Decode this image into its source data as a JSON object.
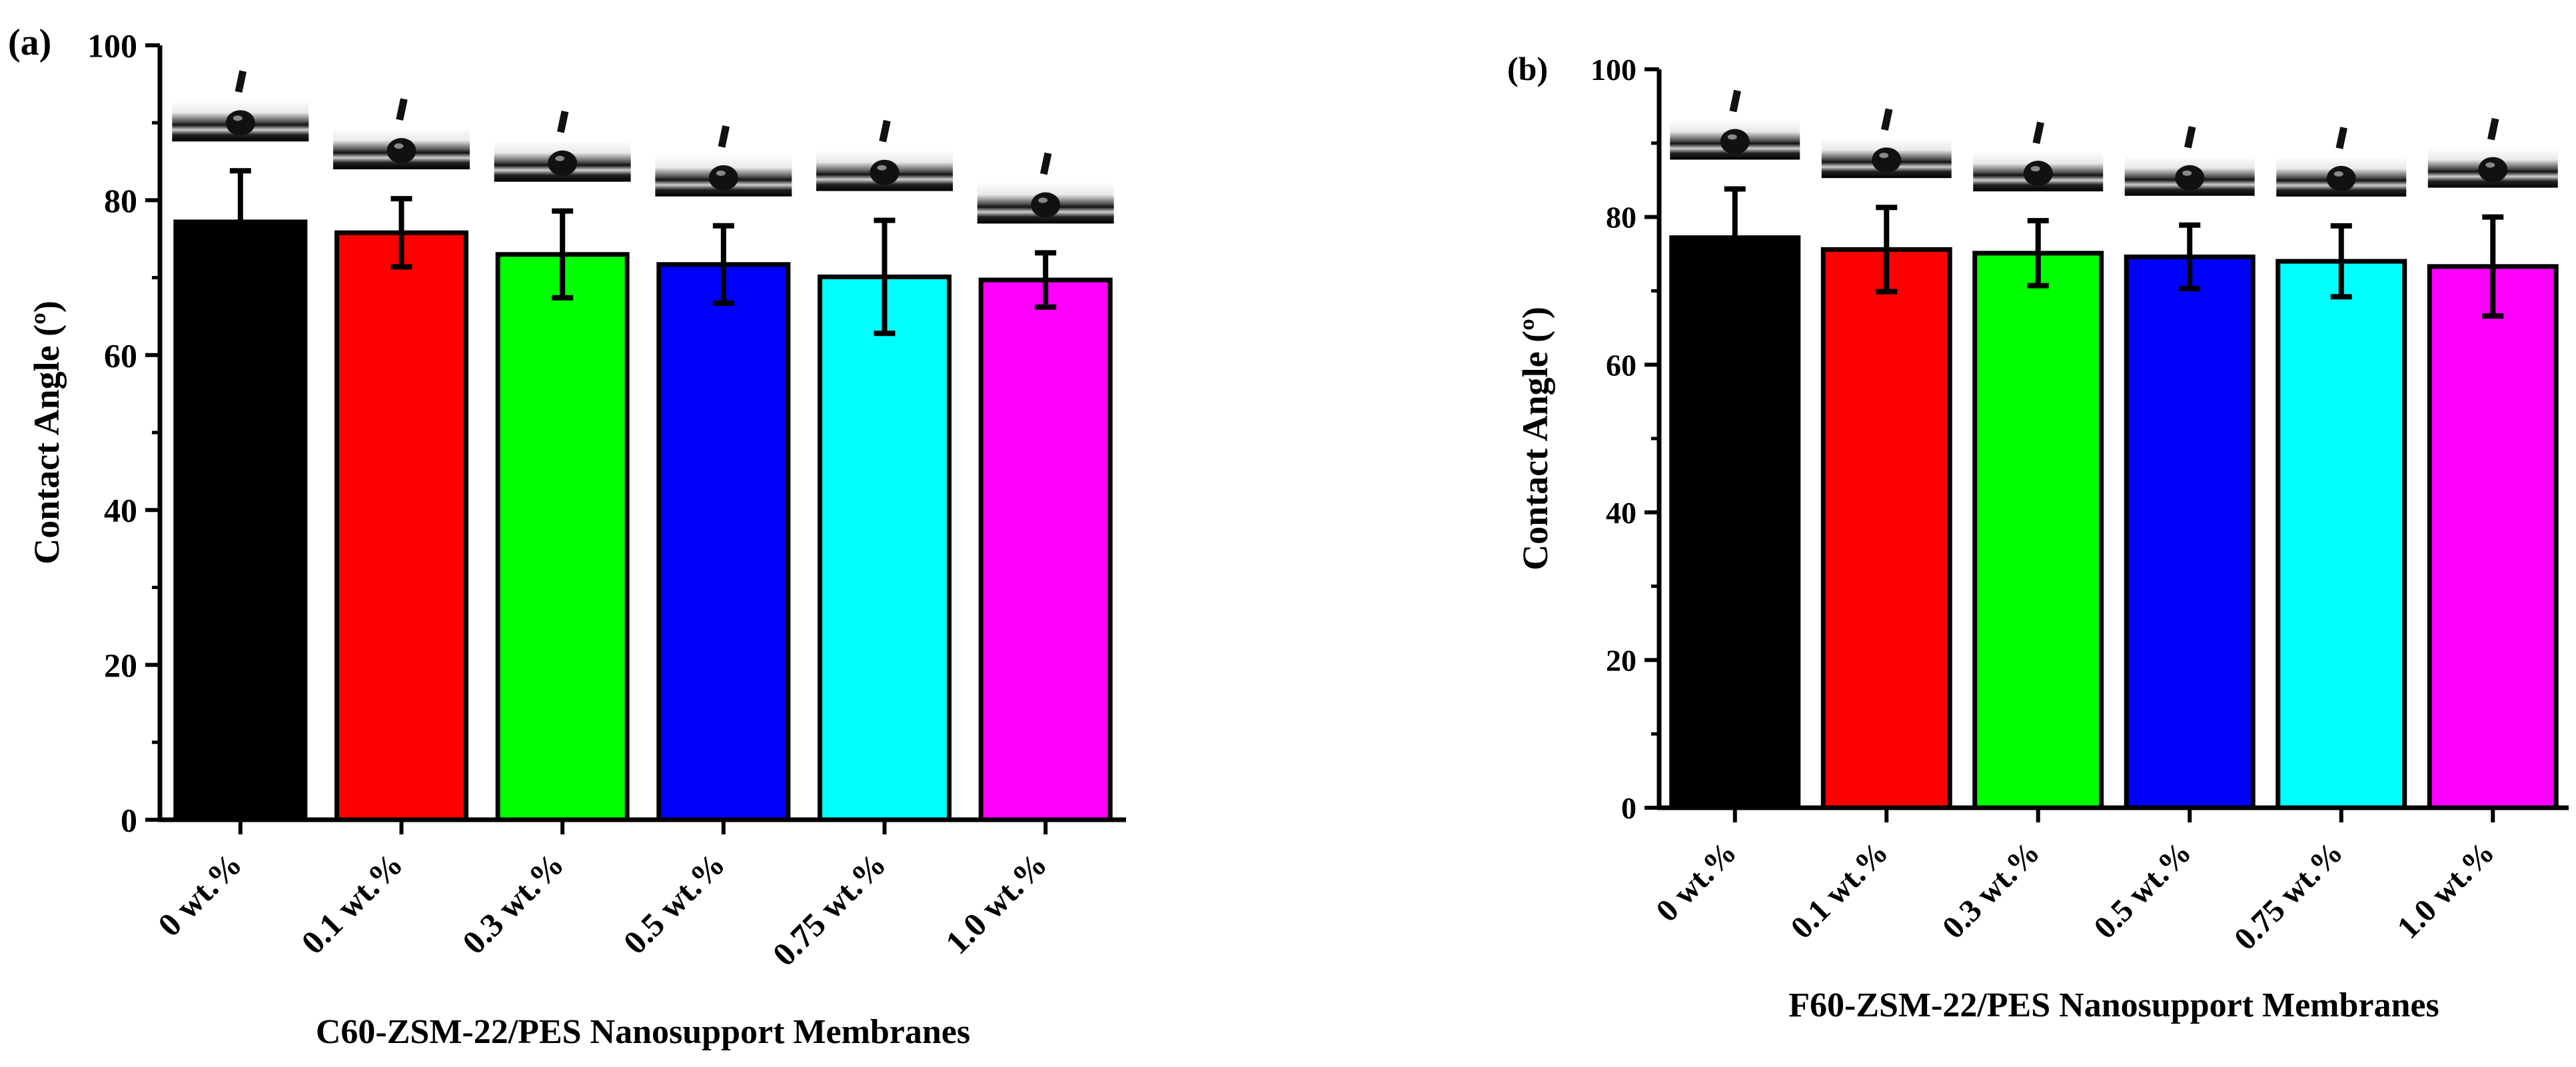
{
  "chart_data": [
    {
      "panel_label": "(a)",
      "type": "bar",
      "title": "",
      "xlabel": "C60-ZSM-22/PES Nanosupport Membranes",
      "ylabel": "Contact Angle (º)",
      "categories": [
        "0 wt.%",
        "0.1 wt.%",
        "0.3 wt.%",
        "0.5 wt.%",
        "0.75 wt.%",
        "1.0 wt.%"
      ],
      "values": [
        77.2,
        75.8,
        73.0,
        71.7,
        70.1,
        69.7
      ],
      "errors": [
        6.6,
        4.4,
        5.6,
        5.0,
        7.3,
        3.5
      ],
      "colors": [
        "#000000",
        "#ff0000",
        "#00ff00",
        "#0000ff",
        "#00ffff",
        "#ff00ff"
      ],
      "ylim": [
        0,
        100
      ],
      "yticks": [
        "0",
        "20",
        "40",
        "60",
        "80",
        "100"
      ],
      "grid": false,
      "legend": "none",
      "droplet_images": [
        "droplet-0",
        "droplet-0.1",
        "droplet-0.3",
        "droplet-0.5",
        "droplet-0.75",
        "droplet-1.0"
      ]
    },
    {
      "panel_label": "(b)",
      "type": "bar",
      "title": "",
      "xlabel": "F60-ZSM-22/PES Nanosupport Membranes",
      "ylabel": "Contact Angle (º)",
      "categories": [
        "0 wt.%",
        "0.1 wt.%",
        "0.3 wt.%",
        "0.5 wt.%",
        "0.75 wt.%",
        "1.0 wt.%"
      ],
      "values": [
        77.2,
        75.6,
        75.1,
        74.6,
        74.0,
        73.3
      ],
      "errors": [
        6.6,
        5.7,
        4.4,
        4.3,
        4.8,
        6.7
      ],
      "colors": [
        "#000000",
        "#ff0000",
        "#00ff00",
        "#0000ff",
        "#00ffff",
        "#ff00ff"
      ],
      "ylim": [
        0,
        100
      ],
      "yticks": [
        "0",
        "20",
        "40",
        "60",
        "80",
        "100"
      ],
      "grid": false,
      "legend": "none",
      "droplet_images": [
        "droplet-0",
        "droplet-0.1",
        "droplet-0.3",
        "droplet-0.5",
        "droplet-0.75",
        "droplet-1.0"
      ]
    }
  ]
}
